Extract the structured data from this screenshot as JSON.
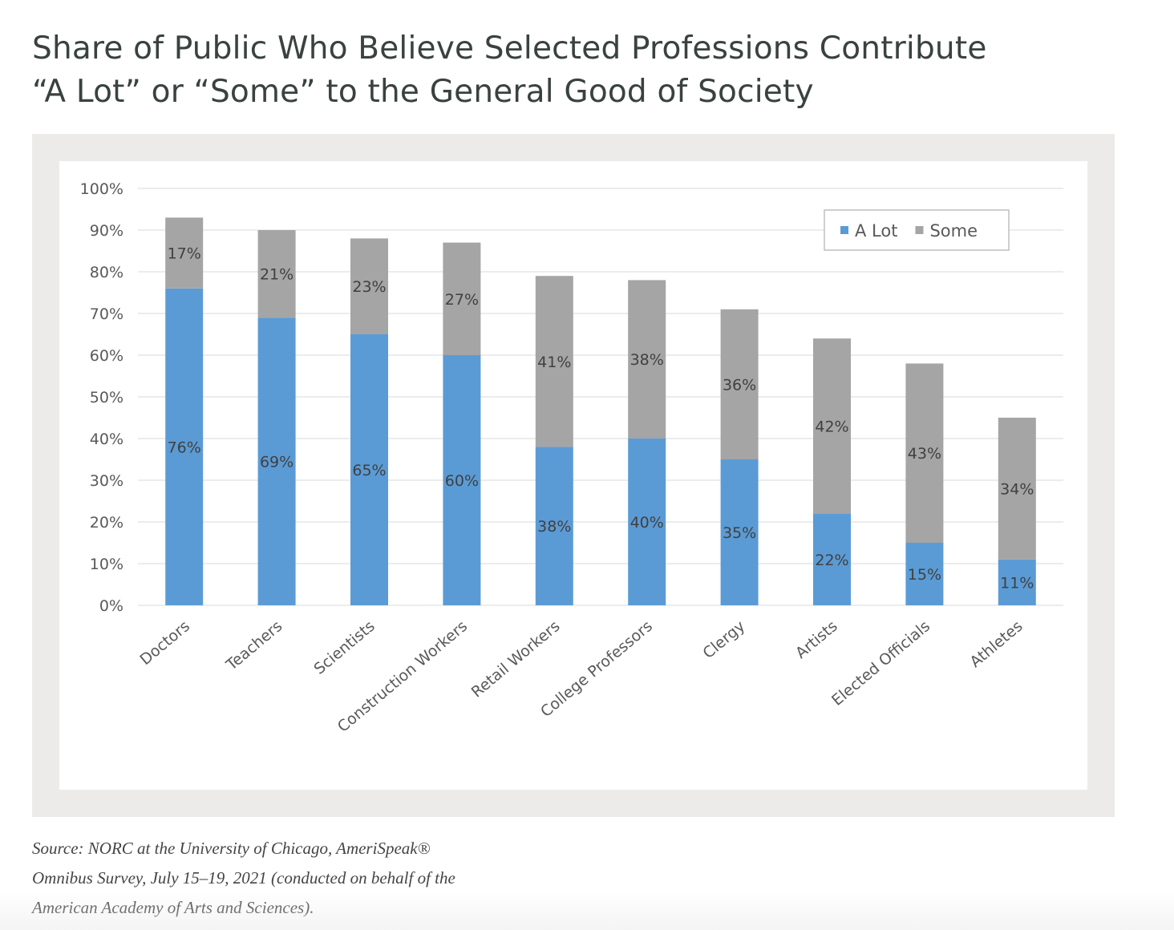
{
  "title_lines": [
    "Share of Public Who Believe Selected Professions Contribute",
    "“A Lot” or “Some” to the General Good of Society"
  ],
  "source_lines": [
    "Source: NORC at the University of Chicago, AmeriSpeak®",
    "Omnibus Survey, July 15–19, 2021 (conducted on behalf of the",
    "American Academy of Arts and Sciences)."
  ],
  "colors": {
    "a_lot": "#5b9bd5",
    "some": "#a5a5a5",
    "frame": "#ecebe9",
    "gridline": "#d9d9d9",
    "tick_text": "#595959"
  },
  "chart_data": {
    "type": "bar",
    "stacked": true,
    "categories": [
      "Doctors",
      "Teachers",
      "Scientists",
      "Construction Workers",
      "Retail Workers",
      "College Professors",
      "Clergy",
      "Artists",
      "Elected Officials",
      "Athletes"
    ],
    "series": [
      {
        "name": "A Lot",
        "color": "#5b9bd5",
        "values": [
          76,
          69,
          65,
          60,
          38,
          40,
          35,
          22,
          15,
          11
        ],
        "labels": [
          "76%",
          "69%",
          "65%",
          "60%",
          "38%",
          "40%",
          "35%",
          "22%",
          "15%",
          "11%"
        ]
      },
      {
        "name": "Some",
        "color": "#a5a5a5",
        "values": [
          17,
          21,
          23,
          27,
          41,
          38,
          36,
          42,
          43,
          34
        ],
        "labels": [
          "17%",
          "21%",
          "23%",
          "27%",
          "41%",
          "38%",
          "36%",
          "42%",
          "43%",
          "34%"
        ]
      }
    ],
    "ylim": [
      0,
      100
    ],
    "yticks": [
      "0%",
      "10%",
      "20%",
      "30%",
      "40%",
      "50%",
      "60%",
      "70%",
      "80%",
      "90%",
      "100%"
    ],
    "grid": true,
    "legend_position": "top-right",
    "x_label_rotation": "diagonal"
  }
}
